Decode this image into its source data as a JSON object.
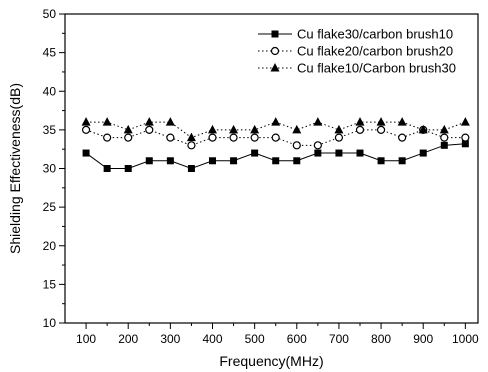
{
  "chart_data": {
    "type": "line",
    "title": "",
    "xlabel": "Frequency(MHz)",
    "ylabel": "Shielding Effectiveness(dB)",
    "xlim": [
      50,
      1030
    ],
    "ylim": [
      10,
      50
    ],
    "xticks": [
      100,
      200,
      300,
      400,
      500,
      600,
      700,
      800,
      900,
      1000
    ],
    "yticks": [
      10,
      15,
      20,
      25,
      30,
      35,
      40,
      45,
      50
    ],
    "grid": false,
    "legend_position": "top-right",
    "x": [
      100,
      150,
      200,
      250,
      300,
      350,
      400,
      450,
      500,
      550,
      600,
      650,
      700,
      750,
      800,
      850,
      900,
      950,
      1000
    ],
    "series": [
      {
        "name": "Cu flake30/carbon brush10",
        "marker": "square",
        "line_style": "solid",
        "values": [
          32,
          30,
          30,
          31,
          31,
          30,
          31,
          31,
          32,
          31,
          31,
          32,
          32,
          32,
          31,
          31,
          32,
          33,
          33.2
        ]
      },
      {
        "name": "Cu flake20/carbon brush20",
        "marker": "circle",
        "line_style": "dotted",
        "values": [
          35,
          34,
          34,
          35,
          34,
          33,
          34,
          34,
          34,
          34,
          33,
          33,
          34,
          35,
          35,
          34,
          35,
          34,
          34
        ]
      },
      {
        "name": "Cu flake10/Carbon brush30",
        "marker": "triangle",
        "line_style": "dotted",
        "values": [
          36,
          36,
          35,
          36,
          36,
          34,
          35,
          35,
          35,
          36,
          35,
          36,
          35,
          36,
          36,
          36,
          35,
          35,
          36
        ]
      }
    ]
  }
}
